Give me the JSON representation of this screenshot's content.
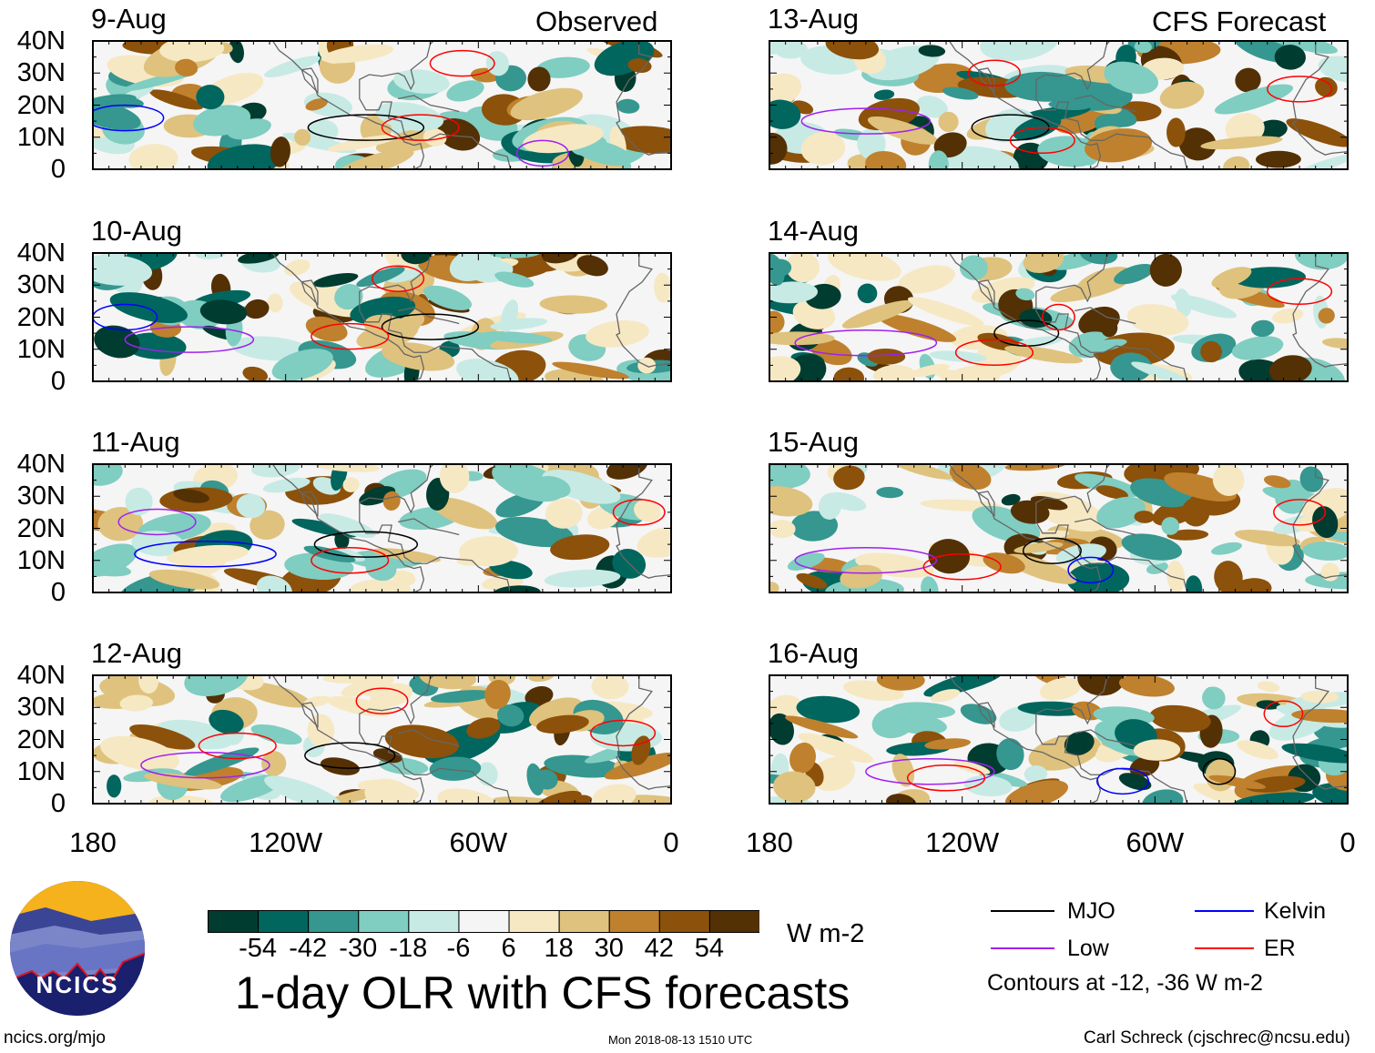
{
  "panels_left_title": "Observed",
  "panels_right_title": "CFS Forecast",
  "panels": [
    {
      "date": "9-Aug",
      "group": "observed"
    },
    {
      "date": "10-Aug",
      "group": "observed"
    },
    {
      "date": "11-Aug",
      "group": "observed"
    },
    {
      "date": "12-Aug",
      "group": "observed"
    },
    {
      "date": "13-Aug",
      "group": "forecast"
    },
    {
      "date": "14-Aug",
      "group": "forecast"
    },
    {
      "date": "15-Aug",
      "group": "forecast"
    },
    {
      "date": "16-Aug",
      "group": "forecast"
    }
  ],
  "chart_data": {
    "type": "heatmap",
    "title": "1-day OLR with CFS forecasts",
    "units": "W m-2",
    "y_ticks": [
      "40N",
      "30N",
      "20N",
      "10N",
      "0"
    ],
    "x_ticks": [
      "180",
      "120W",
      "60W",
      "0"
    ],
    "lat_range": [
      0,
      40
    ],
    "lon_range_west": [
      180,
      0
    ],
    "colorbar": {
      "levels": [
        "-54",
        "-42",
        "-30",
        "-18",
        "-6",
        "6",
        "18",
        "30",
        "42",
        "54"
      ],
      "colors": [
        "#003c30",
        "#01665e",
        "#35978f",
        "#80cdc1",
        "#c7eae5",
        "#f5f5f5",
        "#f6e8c3",
        "#dfc27d",
        "#bf812d",
        "#8c510a",
        "#543005"
      ]
    },
    "legend": [
      {
        "label": "MJO",
        "color": "#000000"
      },
      {
        "label": "Kelvin",
        "color": "#0000ff"
      },
      {
        "label": "Low",
        "color": "#a020f0"
      },
      {
        "label": "ER",
        "color": "#ff0000"
      }
    ],
    "contour_note": "Contours at -12, -36 W m-2"
  },
  "footer": {
    "logo_text": "NCICS",
    "url": "ncics.org/mjo",
    "timestamp": "Mon 2018-08-13 1510 UTC",
    "credit": "Carl Schreck (cjschrec@ncsu.edu)"
  }
}
